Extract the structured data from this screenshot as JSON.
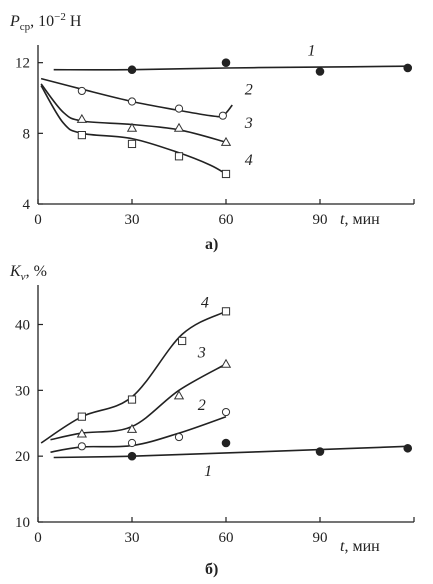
{
  "chart_data": [
    {
      "type": "line",
      "panel_label": "а)",
      "ylabel_text": "P",
      "ylabel_sub": "ср",
      "ylabel_unit": ", 10",
      "ylabel_exp": "−2",
      "ylabel_after": " Н",
      "xlabel_var": "t",
      "xlabel_unit": ", мин",
      "xlim": [
        0,
        120
      ],
      "ylim": [
        4,
        13
      ],
      "x_ticks": [
        0,
        30,
        60,
        90
      ],
      "x_tick_labels": [
        "0",
        "30",
        "60",
        "90"
      ],
      "y_ticks": [
        4,
        8,
        12
      ],
      "y_tick_labels": [
        "4",
        "8",
        "12"
      ],
      "grid": false,
      "series": [
        {
          "name": "1",
          "marker": "filled-circle",
          "points": [
            [
              30,
              11.6
            ],
            [
              60,
              12.0
            ],
            [
              90,
              11.5
            ],
            [
              118,
              11.7
            ]
          ],
          "curve": [
            [
              5,
              11.6
            ],
            [
              30,
              11.6
            ],
            [
              60,
              11.7
            ],
            [
              90,
              11.75
            ],
            [
              118,
              11.8
            ]
          ],
          "label_at": [
            86,
            12.4
          ]
        },
        {
          "name": "2",
          "marker": "open-circle",
          "points": [
            [
              14,
              10.4
            ],
            [
              30,
              9.8
            ],
            [
              45,
              9.4
            ],
            [
              59,
              9.0
            ]
          ],
          "curve": [
            [
              1,
              11.1
            ],
            [
              14,
              10.5
            ],
            [
              30,
              9.8
            ],
            [
              45,
              9.3
            ],
            [
              55,
              9.0
            ],
            [
              59,
              9.0
            ],
            [
              62,
              9.6
            ]
          ],
          "label_at": [
            66,
            10.2
          ]
        },
        {
          "name": "3",
          "marker": "open-triangle",
          "points": [
            [
              14,
              8.8
            ],
            [
              30,
              8.3
            ],
            [
              45,
              8.3
            ],
            [
              60,
              7.5
            ]
          ],
          "curve": [
            [
              1,
              10.8
            ],
            [
              8,
              9.2
            ],
            [
              14,
              8.7
            ],
            [
              30,
              8.5
            ],
            [
              45,
              8.2
            ],
            [
              60,
              7.5
            ]
          ],
          "label_at": [
            66,
            8.3
          ]
        },
        {
          "name": "4",
          "marker": "open-square",
          "points": [
            [
              14,
              7.9
            ],
            [
              30,
              7.4
            ],
            [
              45,
              6.7
            ],
            [
              60,
              5.7
            ]
          ],
          "curve": [
            [
              1,
              10.7
            ],
            [
              8,
              8.6
            ],
            [
              14,
              8.0
            ],
            [
              30,
              7.7
            ],
            [
              45,
              6.9
            ],
            [
              55,
              6.2
            ],
            [
              60,
              5.7
            ]
          ],
          "label_at": [
            66,
            6.2
          ]
        }
      ]
    },
    {
      "type": "line",
      "panel_label": "б)",
      "ylabel_text": "K",
      "ylabel_sub": "v",
      "ylabel_unit": ", %",
      "ylabel_exp": "",
      "ylabel_after": "",
      "xlabel_var": "t",
      "xlabel_unit": ", мин",
      "xlim": [
        0,
        120
      ],
      "ylim": [
        10,
        46
      ],
      "x_ticks": [
        0,
        30,
        60,
        90
      ],
      "x_tick_labels": [
        "0",
        "30",
        "60",
        "90"
      ],
      "y_ticks": [
        10,
        20,
        30,
        40
      ],
      "y_tick_labels": [
        "10",
        "20",
        "30",
        "40"
      ],
      "grid": false,
      "series": [
        {
          "name": "1",
          "marker": "filled-circle",
          "points": [
            [
              30,
              20.0
            ],
            [
              60,
              22.0
            ],
            [
              90,
              20.7
            ],
            [
              118,
              21.2
            ]
          ],
          "curve": [
            [
              5,
              19.8
            ],
            [
              30,
              20.0
            ],
            [
              60,
              20.5
            ],
            [
              90,
              21.0
            ],
            [
              118,
              21.5
            ]
          ],
          "label_at": [
            53,
            17.0
          ]
        },
        {
          "name": "2",
          "marker": "open-circle",
          "points": [
            [
              14,
              21.5
            ],
            [
              30,
              22.0
            ],
            [
              45,
              22.9
            ],
            [
              60,
              26.7
            ]
          ],
          "curve": [
            [
              4,
              20.6
            ],
            [
              14,
              21.4
            ],
            [
              30,
              21.6
            ],
            [
              45,
              23.5
            ],
            [
              60,
              26.0
            ]
          ],
          "label_at": [
            51,
            27.0
          ]
        },
        {
          "name": "3",
          "marker": "open-triangle",
          "points": [
            [
              14,
              23.4
            ],
            [
              30,
              24.1
            ],
            [
              45,
              29.2
            ],
            [
              60,
              34.0
            ]
          ],
          "curve": [
            [
              4,
              22.5
            ],
            [
              14,
              23.5
            ],
            [
              30,
              24.5
            ],
            [
              45,
              30.0
            ],
            [
              60,
              34.0
            ]
          ],
          "label_at": [
            51,
            35.0
          ]
        },
        {
          "name": "4",
          "marker": "open-square",
          "points": [
            [
              14,
              26.0
            ],
            [
              30,
              28.6
            ],
            [
              46,
              37.5
            ],
            [
              60,
              42.0
            ]
          ],
          "curve": [
            [
              1,
              22.0
            ],
            [
              14,
              26.0
            ],
            [
              30,
              29.0
            ],
            [
              46,
              38.5
            ],
            [
              60,
              42.0
            ]
          ],
          "label_at": [
            52,
            42.6
          ]
        }
      ]
    }
  ]
}
